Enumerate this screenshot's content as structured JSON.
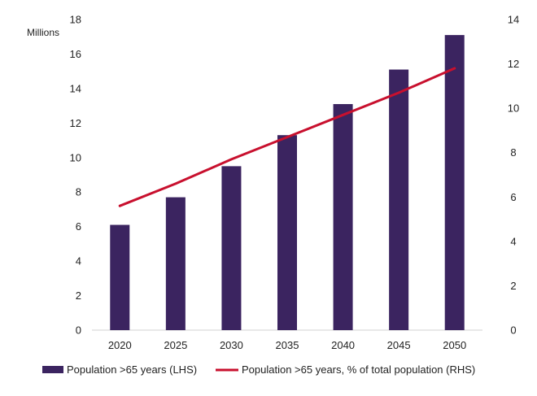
{
  "chart_data": {
    "type": "bar",
    "categories": [
      "2020",
      "2025",
      "2030",
      "2035",
      "2040",
      "2045",
      "2050"
    ],
    "y_unit_label": "Millions",
    "ylim_left": [
      0,
      18
    ],
    "yticks_left": [
      0,
      2,
      4,
      6,
      8,
      10,
      12,
      14,
      16,
      18
    ],
    "ylim_right": [
      0,
      14
    ],
    "yticks_right": [
      0,
      2,
      4,
      6,
      8,
      10,
      12,
      14
    ],
    "grid": false,
    "legend_position": "bottom",
    "series": [
      {
        "name": "Population >65 years (LHS)",
        "type": "bar",
        "axis": "left",
        "color": "#3b2460",
        "values": [
          6.1,
          7.7,
          9.5,
          11.3,
          13.1,
          15.1,
          17.1
        ]
      },
      {
        "name": "Population >65 years, % of total population (RHS)",
        "type": "line",
        "axis": "right",
        "color": "#c8102e",
        "values": [
          5.6,
          6.6,
          7.7,
          8.7,
          9.7,
          10.7,
          11.8
        ]
      }
    ]
  }
}
